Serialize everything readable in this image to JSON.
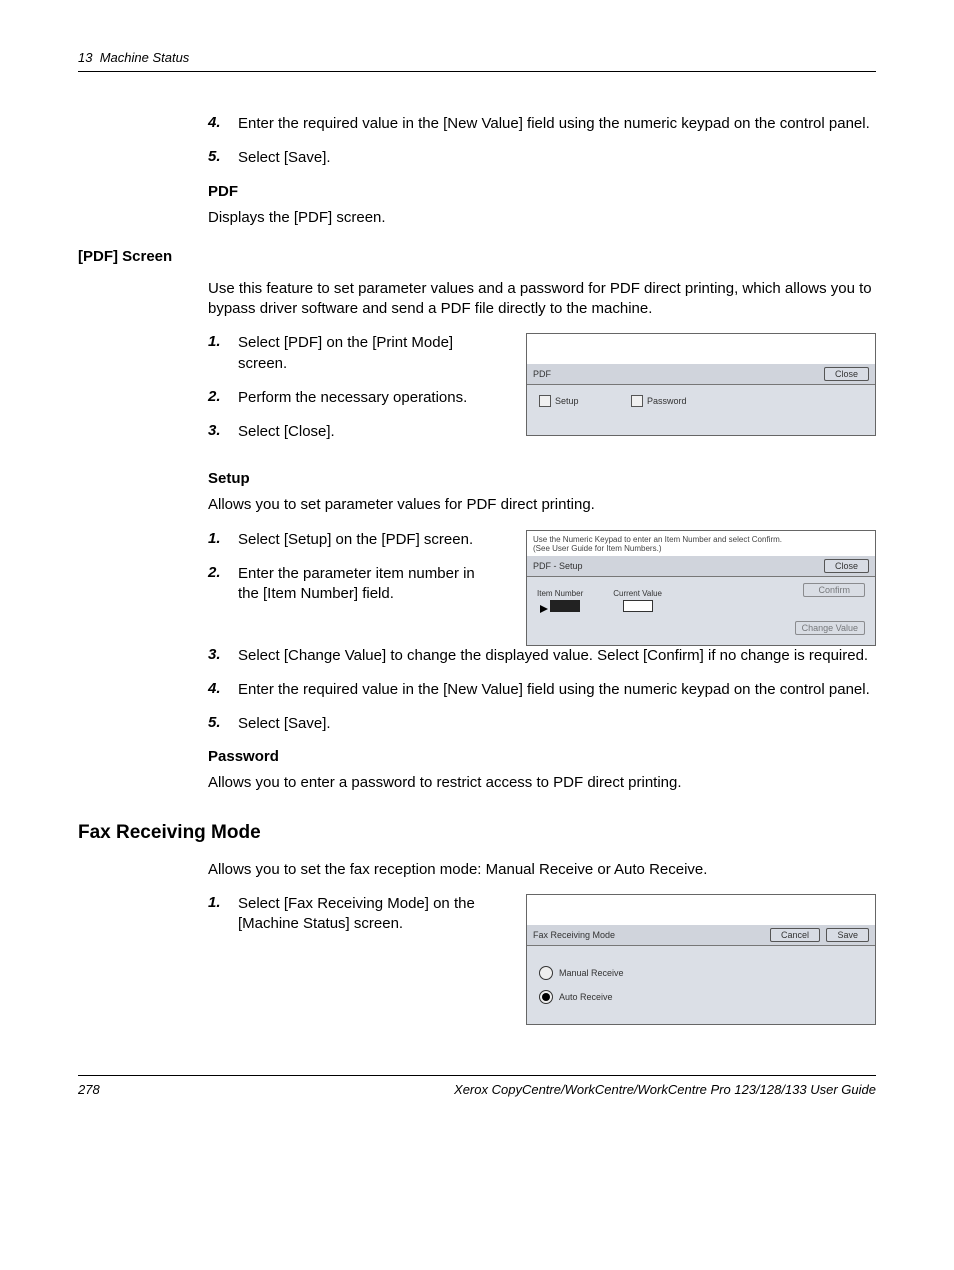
{
  "header": {
    "chapter": "13",
    "title": "Machine Status"
  },
  "step4": "Enter the required value in the [New Value] field using the numeric keypad on the control panel.",
  "step5": "Select [Save].",
  "pdf": {
    "heading": "PDF",
    "desc": "Displays the [PDF] screen."
  },
  "pdfScreen": {
    "title": "[PDF] Screen",
    "intro": "Use this feature to set parameter values and a password for PDF direct printing, which allows you to bypass driver software and send a PDF file directly to the machine.",
    "s1": "Select [PDF] on the [Print Mode] screen.",
    "s2": "Perform the necessary operations.",
    "s3": "Select [Close].",
    "mock": {
      "title": "PDF",
      "close": "Close",
      "setup": "Setup",
      "password": "Password"
    }
  },
  "setup": {
    "heading": "Setup",
    "desc": "Allows you to set parameter values for PDF direct printing.",
    "s1": "Select [Setup] on the [PDF] screen.",
    "s2": "Enter the parameter item number in the [Item Number] field.",
    "s3": "Select [Change Value] to change the displayed value. Select [Confirm] if no change is required.",
    "s4": "Enter the required value in the [New Value] field using the numeric keypad on the control panel.",
    "s5": "Select [Save].",
    "mock": {
      "hint": "Use the Numeric Keypad to enter an Item Number and select Confirm.\n(See User Guide for Item Numbers.)",
      "title": "PDF - Setup",
      "close": "Close",
      "itemnum": "Item Number",
      "curval": "Current Value",
      "confirm": "Confirm",
      "change": "Change Value"
    }
  },
  "password": {
    "heading": "Password",
    "desc": "Allows you to enter a password to restrict access to PDF direct printing."
  },
  "fax": {
    "heading": "Fax Receiving Mode",
    "desc": "Allows you to set the fax reception mode: Manual Receive or Auto Receive.",
    "s1": "Select [Fax Receiving Mode] on the [Machine Status] screen.",
    "mock": {
      "title": "Fax Receiving Mode",
      "cancel": "Cancel",
      "save": "Save",
      "manual": "Manual Receive",
      "auto": "Auto Receive"
    }
  },
  "footer": {
    "page": "278",
    "guide": "Xerox CopyCentre/WorkCentre/WorkCentre Pro 123/128/133 User Guide"
  }
}
